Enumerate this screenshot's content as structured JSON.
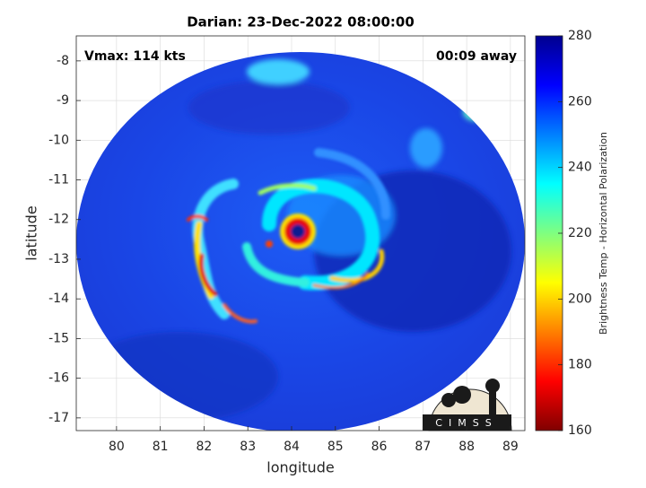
{
  "chart_data": {
    "type": "image",
    "title": "Darian: 23-Dec-2022 08:00:00",
    "annotations": [
      "Vmax: 114 kts",
      "00:09 away"
    ],
    "x_label": "longitude",
    "y_label": "latitude",
    "xlim": [
      79.08,
      89.33
    ],
    "xticks": [
      80,
      81,
      82,
      83,
      84,
      85,
      86,
      87,
      88,
      89
    ],
    "ylim": [
      -17.32,
      -7.37
    ],
    "yticks": [
      -17,
      -16,
      -15,
      -14,
      -13,
      -12,
      -11,
      -10,
      -9,
      -8
    ],
    "grid": true,
    "colorbar": {
      "label": "Brightness Temp - Horizontal Polarization",
      "lim": [
        160,
        280
      ],
      "ticks": [
        160,
        180,
        200,
        220,
        240,
        260,
        280
      ],
      "colormap": "jet"
    },
    "logo": "CIMSS"
  }
}
